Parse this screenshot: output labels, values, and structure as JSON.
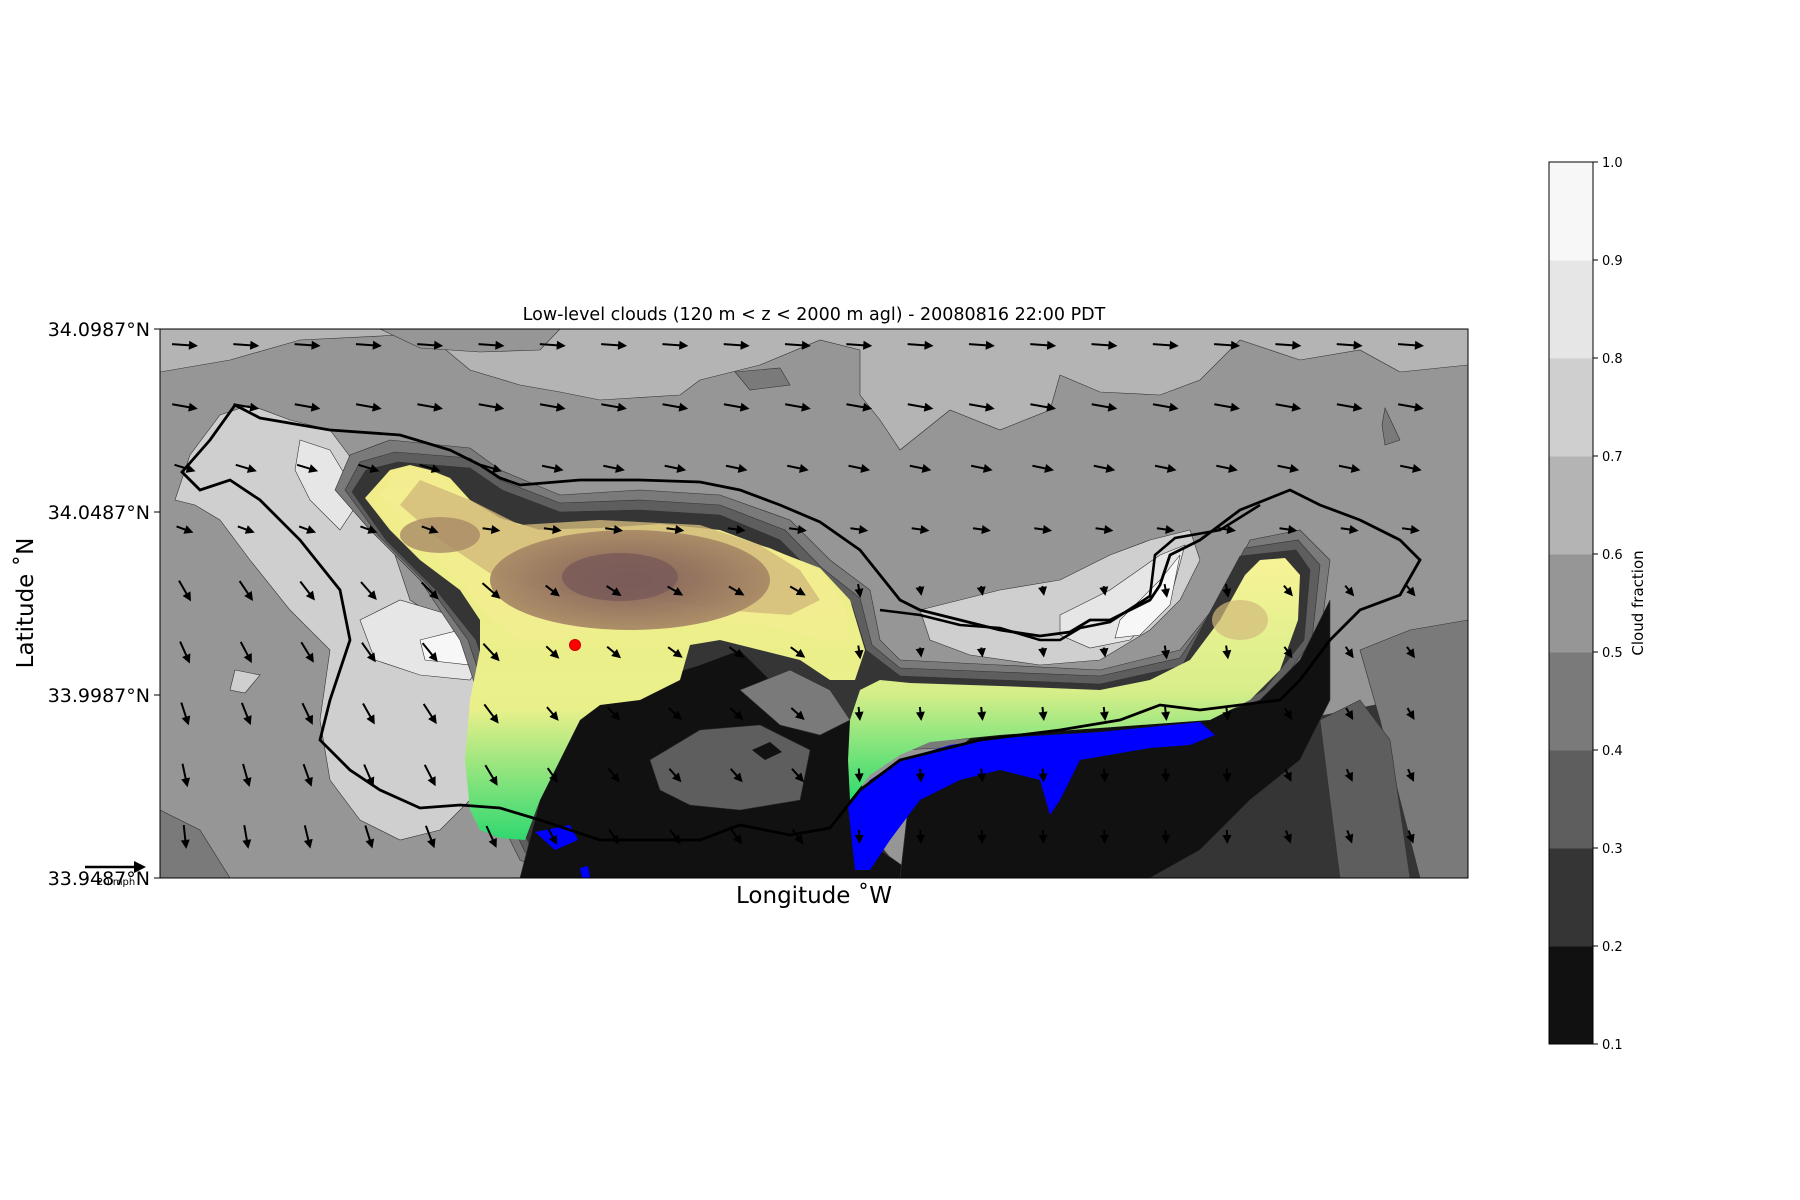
{
  "chart_data": {
    "type": "heatmap",
    "title": "Low-level clouds (120 m < z < 2000 m agl) - 20080816 22:00 PDT",
    "xlabel": "Longitude $^\\circ$W",
    "xlabel_display": "Longitude ˚W",
    "ylabel_display": "Latitude ˚N",
    "y_ticks": [
      "34.0987°N",
      "34.0487°N",
      "33.9987°N",
      "33.9487°N"
    ],
    "y_tick_values": [
      34.0987,
      34.0487,
      33.9987,
      33.9487
    ],
    "ylim": [
      33.9487,
      34.0987
    ],
    "colorbar": {
      "label": "Cloud fraction",
      "range": [
        0.1,
        1.0
      ],
      "ticks": [
        "0.1",
        "0.2",
        "0.3",
        "0.4",
        "0.5",
        "0.6",
        "0.7",
        "0.8",
        "0.9",
        "1.0"
      ],
      "levels": [
        {
          "from": 0.1,
          "to": 0.2,
          "color": "#111111"
        },
        {
          "from": 0.2,
          "to": 0.3,
          "color": "#353535"
        },
        {
          "from": 0.3,
          "to": 0.4,
          "color": "#5e5e5e"
        },
        {
          "from": 0.4,
          "to": 0.5,
          "color": "#7a7a7a"
        },
        {
          "from": 0.5,
          "to": 0.6,
          "color": "#969696"
        },
        {
          "from": 0.6,
          "to": 0.7,
          "color": "#b4b4b4"
        },
        {
          "from": 0.7,
          "to": 0.8,
          "color": "#cfcfcf"
        },
        {
          "from": 0.8,
          "to": 0.9,
          "color": "#e6e6e6"
        },
        {
          "from": 0.9,
          "to": 1.0,
          "color": "#f7f7f7"
        }
      ]
    },
    "wind_reference": "20 mph",
    "colors": {
      "terrain_low": "#0000ff",
      "terrain_mid": "#28d46a",
      "terrain_yellow": "#f4f08a",
      "terrain_high": "#8e6a5e",
      "marker": "#ff0000"
    }
  }
}
